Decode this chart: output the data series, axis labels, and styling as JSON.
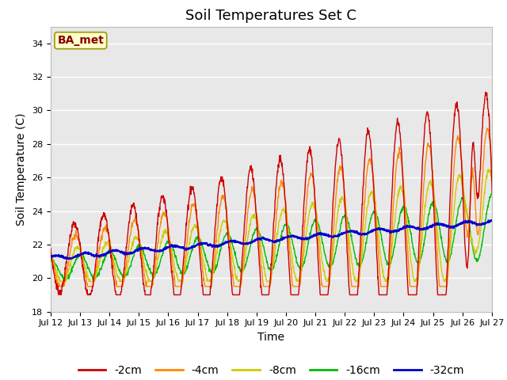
{
  "title": "Soil Temperatures Set C",
  "xlabel": "Time",
  "ylabel": "Soil Temperature (C)",
  "ylim": [
    18,
    35
  ],
  "background_color": "#e8e8e8",
  "figure_color": "#ffffff",
  "grid_color": "#ffffff",
  "series_colors": {
    "-2cm": "#cc0000",
    "-4cm": "#ff8800",
    "-8cm": "#cccc00",
    "-16cm": "#00bb00",
    "-32cm": "#0000cc"
  },
  "annotation_text": "BA_met",
  "annotation_color": "#880000",
  "annotation_bg": "#ffffcc",
  "annotation_border": "#999900",
  "x_tick_labels": [
    "Jul 12",
    "Jul 13",
    "Jul 14",
    "Jul 15",
    "Jul 16",
    "Jul 17",
    "Jul 18",
    "Jul 19",
    "Jul 20",
    "Jul 21",
    "Jul 22",
    "Jul 23",
    "Jul 24",
    "Jul 25",
    "Jul 26",
    "Jul 27"
  ],
  "title_fontsize": 13,
  "axis_fontsize": 10,
  "tick_fontsize": 8,
  "legend_fontsize": 10
}
